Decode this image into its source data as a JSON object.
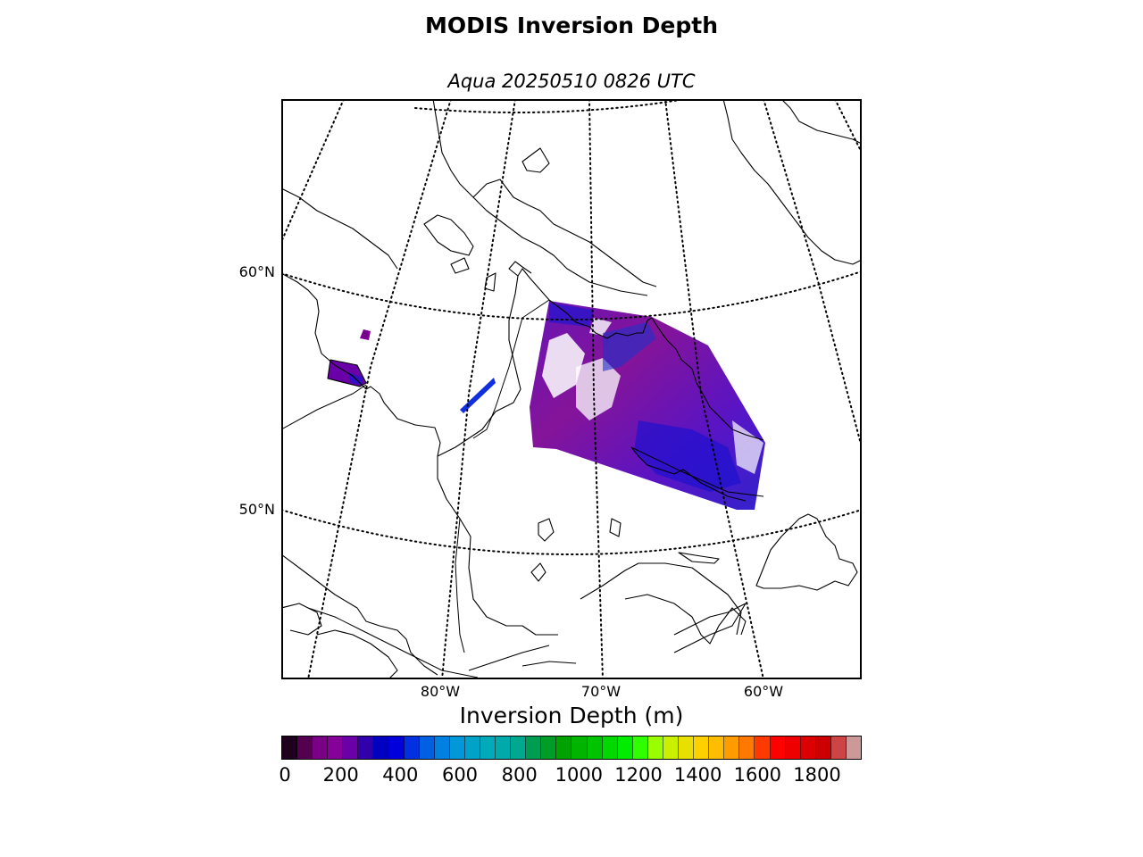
{
  "title": "MODIS Inversion Depth",
  "subtitle": "Aqua 20250510 0826 UTC",
  "map": {
    "region": "Eastern Canada / Labrador Sea",
    "lat_labels": [
      "60°N",
      "50°N"
    ],
    "lon_labels": [
      "80°W",
      "70°W",
      "60°W"
    ],
    "graticule": "dotted",
    "coastline_color": "#000000"
  },
  "colorbar": {
    "title": "Inversion Depth (m)",
    "tick_labels": [
      "0",
      "200",
      "400",
      "600",
      "800",
      "1000",
      "1200",
      "1400",
      "1600",
      "1800"
    ],
    "min": 0,
    "max": 1950,
    "step": 50,
    "colors": [
      "#1e001e",
      "#52004f",
      "#7a0086",
      "#86009a",
      "#6c00a8",
      "#3000ac",
      "#0000c0",
      "#0000dd",
      "#0030e0",
      "#0060e2",
      "#0080e0",
      "#0098d8",
      "#00a2c8",
      "#00aab8",
      "#00aaaa",
      "#00a890",
      "#009c50",
      "#009c28",
      "#00a200",
      "#00b400",
      "#00c400",
      "#00d800",
      "#00ec00",
      "#30ff00",
      "#9aff00",
      "#c8f000",
      "#e8e000",
      "#ffd000",
      "#ffbc00",
      "#ff9c00",
      "#ff7800",
      "#ff3a00",
      "#ff0000",
      "#ee0000",
      "#dd0000",
      "#cc0000",
      "#cc4444",
      "#cc9999"
    ]
  },
  "swaths": [
    {
      "name": "main-swath",
      "dominant_color": "#7a0090"
    },
    {
      "name": "west-fragment",
      "dominant_color": "#6a00a8"
    }
  ]
}
